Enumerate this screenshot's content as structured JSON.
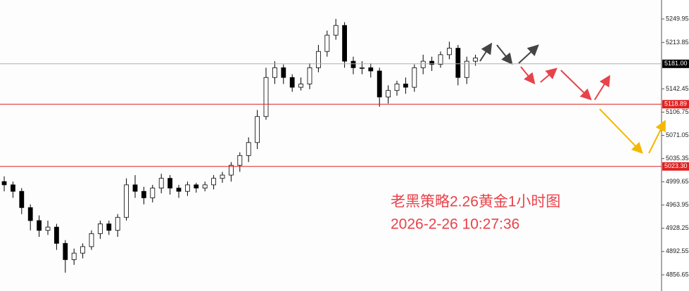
{
  "chart_data": {
    "type": "candlestick",
    "annotations": [
      "老黑策略2.26黄金1小时图",
      "2026-2-26 10:27:36"
    ],
    "annotation_color": "#e8424a",
    "open": [
      5000,
      4995,
      4985,
      4960,
      4940,
      4925,
      4930,
      4905,
      4880,
      4890,
      4900,
      4920,
      4935,
      4925,
      4945,
      4995,
      4985,
      4975,
      4990,
      5005,
      4990,
      4985,
      4995,
      4990,
      4995,
      5005,
      5010,
      5025,
      5040,
      5060,
      5100,
      5160,
      5175,
      5160,
      5145,
      5150,
      5175,
      5200,
      5225,
      5240,
      5185,
      5175,
      5175,
      5170,
      5130,
      5140,
      5150,
      5145,
      5175,
      5185,
      5180,
      5195,
      5205,
      5160,
      5185
    ],
    "high": [
      5008,
      5000,
      4990,
      4965,
      4948,
      4940,
      4935,
      4910,
      4897,
      4905,
      4925,
      4940,
      4940,
      4950,
      5005,
      5010,
      4992,
      4995,
      5012,
      5010,
      4995,
      5000,
      4998,
      5000,
      5010,
      5015,
      5030,
      5045,
      5068,
      5110,
      5175,
      5185,
      5180,
      5165,
      5160,
      5182,
      5210,
      5232,
      5250,
      5245,
      5192,
      5185,
      5182,
      5175,
      5148,
      5155,
      5160,
      5180,
      5195,
      5192,
      5200,
      5215,
      5210,
      5192,
      5195
    ],
    "low": [
      4985,
      4975,
      4950,
      4925,
      4915,
      4918,
      4895,
      4860,
      4872,
      4882,
      4895,
      4912,
      4918,
      4915,
      4940,
      4975,
      4965,
      4968,
      4982,
      4980,
      4975,
      4978,
      4983,
      4985,
      4988,
      4998,
      5000,
      5015,
      5030,
      5050,
      5095,
      5150,
      5150,
      5138,
      5140,
      5142,
      5168,
      5192,
      5218,
      5175,
      5165,
      5165,
      5160,
      5115,
      5120,
      5132,
      5135,
      5138,
      5165,
      5170,
      5175,
      5188,
      5148,
      5150,
      5178
    ],
    "close": [
      4995,
      4985,
      4960,
      4940,
      4925,
      4930,
      4905,
      4880,
      4890,
      4900,
      4920,
      4935,
      4925,
      4945,
      4995,
      4985,
      4975,
      4990,
      5005,
      4990,
      4985,
      4995,
      4990,
      4995,
      5005,
      5010,
      5025,
      5040,
      5060,
      5100,
      5160,
      5175,
      5160,
      5145,
      5150,
      5175,
      5200,
      5225,
      5240,
      5185,
      5175,
      5175,
      5170,
      5130,
      5140,
      5150,
      5145,
      5175,
      5185,
      5180,
      5195,
      5205,
      5160,
      5185,
      5190
    ],
    "up_color": "#ffffff",
    "down_color": "#000000",
    "ylim": [
      4831.8,
      5279.1
    ],
    "yticks": [
      5249.95,
      5213.85,
      5142.45,
      5106.75,
      5071.05,
      5035.35,
      4999.65,
      4963.95,
      4928.25,
      4892.55,
      4856.65
    ],
    "levels": [
      {
        "value": 5181,
        "label": "5181.00",
        "color": "#b0b0b0",
        "label_color": "#000000"
      },
      {
        "value": 5118.89,
        "label": "5118.89",
        "color": "#e02020",
        "label_color": "#e02020"
      },
      {
        "value": 5023.3,
        "label": "5023.30",
        "color": "#e02020",
        "label_color": "#e02020"
      }
    ]
  }
}
